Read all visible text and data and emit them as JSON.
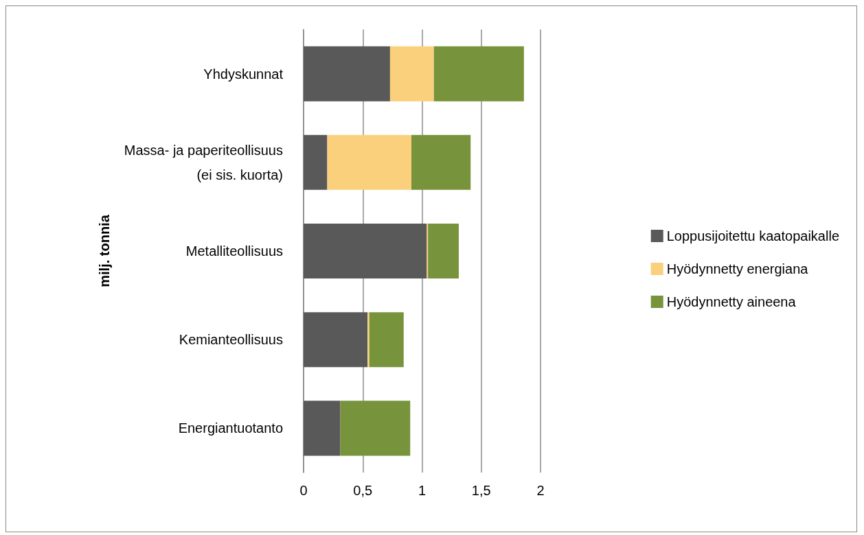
{
  "chart_data": {
    "type": "bar",
    "orientation": "horizontal",
    "stacked": true,
    "ylabel": "milj. tonnia",
    "categories": [
      "Yhdyskunnat",
      "Massa- ja paperiteollisuus\n(ei sis. kuorta)",
      "Metalliteollisuus",
      "Kemianteollisuus",
      "Energiantuotanto"
    ],
    "series": [
      {
        "name": "Loppusijoitettu kaatopaikalle",
        "color": "#595959",
        "values": [
          0.73,
          0.2,
          1.04,
          0.54,
          0.31
        ]
      },
      {
        "name": "Hyödynnetty energiana",
        "color": "#fbd07c",
        "values": [
          0.37,
          0.71,
          0.01,
          0.015,
          0
        ]
      },
      {
        "name": "Hyödynnetty aineena",
        "color": "#77933c",
        "values": [
          0.76,
          0.5,
          0.26,
          0.29,
          0.59
        ]
      }
    ],
    "xlim": [
      0,
      2
    ],
    "xticks": [
      0,
      {
        "value": 0.5,
        "label": "0,5"
      },
      1,
      {
        "value": 1.5,
        "label": "1,5"
      },
      2
    ],
    "grid": "x",
    "legend": "right"
  }
}
